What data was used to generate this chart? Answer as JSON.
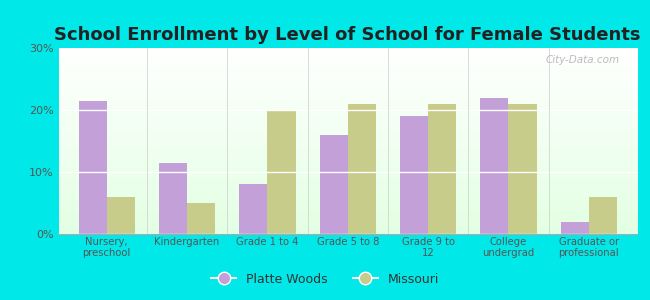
{
  "title": "School Enrollment by Level of School for Female Students",
  "categories": [
    "Nursery,\npreschool",
    "Kindergarten",
    "Grade 1 to 4",
    "Grade 5 to 8",
    "Grade 9 to\n12",
    "College\nundergrad",
    "Graduate or\nprofessional"
  ],
  "platte_woods": [
    21.5,
    11.5,
    8.0,
    16.0,
    19.0,
    22.0,
    2.0
  ],
  "missouri": [
    6.0,
    5.0,
    20.0,
    21.0,
    21.0,
    21.0,
    6.0
  ],
  "platte_color": "#c4a0d8",
  "missouri_color": "#c8cc8a",
  "background_outer": "#00e8e8",
  "ylim": [
    0,
    30
  ],
  "yticks": [
    0,
    10,
    20,
    30
  ],
  "ytick_labels": [
    "0%",
    "10%",
    "20%",
    "30%"
  ],
  "legend_platte": "Platte Woods",
  "legend_missouri": "Missouri",
  "title_fontsize": 13,
  "bar_width": 0.35
}
